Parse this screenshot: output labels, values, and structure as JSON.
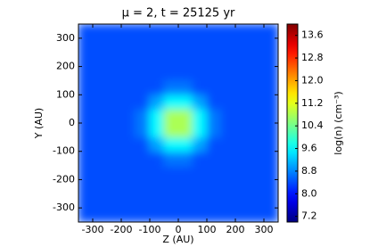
{
  "chart_data": {
    "type": "heatmap",
    "title": "μ = 2, t = 25125 yr",
    "xlabel": "Z (AU)",
    "ylabel": "Y (AU)",
    "colorbar_label": "log(n) (cm⁻³)",
    "colormap": "jet",
    "xlim": [
      -350,
      350
    ],
    "ylim": [
      -350,
      350
    ],
    "xticks": [
      -300,
      -200,
      -100,
      0,
      100,
      200,
      300
    ],
    "yticks": [
      -300,
      -200,
      -100,
      0,
      100,
      200,
      300
    ],
    "clim": [
      7.0,
      14.0
    ],
    "cticks": [
      {
        "value": 7.2,
        "label": "7.2"
      },
      {
        "value": 8,
        "label": "8.0"
      },
      {
        "value": 8.8,
        "label": "8.8"
      },
      {
        "value": 9.6,
        "label": "9.6"
      },
      {
        "value": 10.4,
        "label": "10.4"
      },
      {
        "value": 11.2,
        "label": "11.2"
      },
      {
        "value": 12,
        "label": "12.0"
      },
      {
        "value": 12.8,
        "label": "12.8"
      },
      {
        "value": 13.6,
        "label": "13.6"
      }
    ],
    "z": [
      [
        8.4,
        8.4,
        8.4,
        8.4,
        8.4,
        8.4,
        8.4,
        8.4,
        8.4,
        8.4,
        8.4,
        8.4,
        8.4,
        8.4
      ],
      [
        8.4,
        8.4,
        8.4,
        8.4,
        8.4,
        8.4,
        8.4,
        8.4,
        8.4,
        8.4,
        8.4,
        8.4,
        8.4,
        8.4
      ],
      [
        8.4,
        8.4,
        8.4,
        8.4,
        8.4,
        8.4,
        8.4,
        8.4,
        8.4,
        8.4,
        8.4,
        8.4,
        8.4,
        8.4
      ],
      [
        8.4,
        8.4,
        8.4,
        8.4,
        8.4,
        8.4,
        8.4,
        8.4,
        8.4,
        8.4,
        8.4,
        8.4,
        8.4,
        8.4
      ],
      [
        8.4,
        8.4,
        8.4,
        8.4,
        8.4,
        8.4,
        8.7,
        8.7,
        8.4,
        8.4,
        8.4,
        8.4,
        8.4,
        8.4
      ],
      [
        8.4,
        8.4,
        8.4,
        8.4,
        8.4,
        9.0,
        9.6,
        9.6,
        9.0,
        8.4,
        8.4,
        8.4,
        8.4,
        8.4
      ],
      [
        8.4,
        8.4,
        8.4,
        8.4,
        8.7,
        9.6,
        10.8,
        10.8,
        9.6,
        8.7,
        8.4,
        8.4,
        8.4,
        8.4
      ],
      [
        8.4,
        8.4,
        8.4,
        8.4,
        8.7,
        9.6,
        10.8,
        10.8,
        9.6,
        8.7,
        8.4,
        8.4,
        8.4,
        8.4
      ],
      [
        8.4,
        8.4,
        8.4,
        8.4,
        8.4,
        9.0,
        9.6,
        9.6,
        9.0,
        8.4,
        8.4,
        8.4,
        8.4,
        8.4
      ],
      [
        8.4,
        8.4,
        8.4,
        8.4,
        8.4,
        8.4,
        8.7,
        8.7,
        8.4,
        8.4,
        8.4,
        8.4,
        8.4,
        8.4
      ],
      [
        8.4,
        8.4,
        8.4,
        8.4,
        8.4,
        8.4,
        8.4,
        8.4,
        8.4,
        8.4,
        8.4,
        8.4,
        8.4,
        8.4
      ],
      [
        8.4,
        8.4,
        8.4,
        8.4,
        8.4,
        8.4,
        8.4,
        8.4,
        8.4,
        8.4,
        8.4,
        8.4,
        8.4,
        8.4
      ],
      [
        8.4,
        8.4,
        8.4,
        8.4,
        8.4,
        8.4,
        8.4,
        8.4,
        8.4,
        8.4,
        8.4,
        8.4,
        8.4,
        8.4
      ],
      [
        8.4,
        8.4,
        8.4,
        8.4,
        8.4,
        8.4,
        8.4,
        8.4,
        8.4,
        8.4,
        8.4,
        8.4,
        8.4,
        8.4
      ]
    ]
  }
}
